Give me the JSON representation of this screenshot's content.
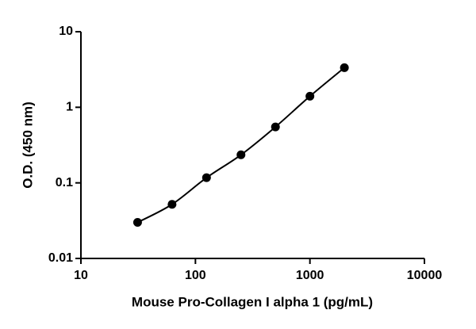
{
  "chart_data": {
    "type": "scatter",
    "x_label": "Mouse Pro-Collagen I alpha 1 (pg/mL)",
    "y_label": "O.D. (450 nm)",
    "x": [
      31.25,
      62.5,
      125,
      250,
      500,
      1000,
      2000
    ],
    "values": [
      0.03,
      0.052,
      0.117,
      0.235,
      0.55,
      1.4,
      3.34
    ],
    "color": "#000000",
    "x_log": true,
    "y_log": true,
    "line": true,
    "xlim": [
      10,
      10000
    ],
    "xticks": [
      10,
      100,
      1000,
      10000
    ],
    "ylim": [
      0.01,
      10
    ],
    "yticks": [
      0.01,
      0.1,
      1,
      10
    ]
  }
}
